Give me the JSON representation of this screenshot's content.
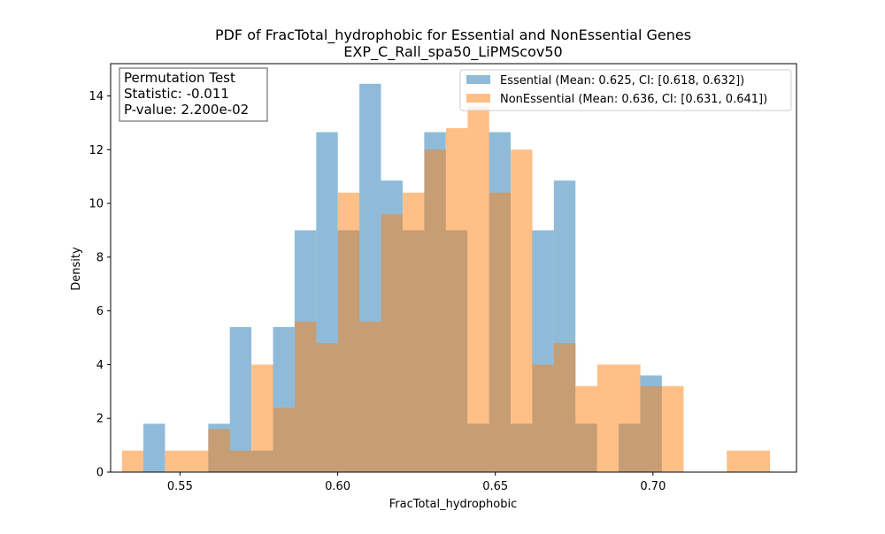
{
  "chart_data": {
    "type": "bar",
    "title": "PDF of FracTotal_hydrophobic for Essential and NonEssential Genes",
    "subtitle": "EXP_C_Rall_spa50_LiPMScov50",
    "xlabel": "FracTotal_hydrophobic",
    "ylabel": "Density",
    "xlim": [
      0.528,
      0.7455
    ],
    "ylim": [
      0,
      15.2
    ],
    "xticks": [
      0.55,
      0.6,
      0.65,
      0.7
    ],
    "xtick_labels": [
      "0.55",
      "0.60",
      "0.65",
      "0.70"
    ],
    "yticks": [
      0,
      2,
      4,
      6,
      8,
      10,
      12,
      14
    ],
    "ytick_labels": [
      "0",
      "2",
      "4",
      "6",
      "8",
      "10",
      "12",
      "14"
    ],
    "grid": false,
    "legend_position": "top-right",
    "series": [
      {
        "name": "Essential (Mean: 0.625, CI: [0.618, 0.632])",
        "color": "#1f77b4",
        "opacity": 0.5,
        "bin_start": 0.5384,
        "bin_width": 0.00685,
        "values": [
          1.8,
          0,
          0,
          1.8,
          5.4,
          0.8,
          5.4,
          9.0,
          12.65,
          9.0,
          14.45,
          10.85,
          9.0,
          12.65,
          9.0,
          1.8,
          12.65,
          1.8,
          9.0,
          10.85,
          1.8,
          0,
          1.8,
          3.6
        ]
      },
      {
        "name": "NonEssential (Mean: 0.636, CI: [0.631, 0.641])",
        "color": "#ff7f0e",
        "opacity": 0.5,
        "bin_start": 0.5316,
        "bin_width": 0.00685,
        "values": [
          0.8,
          0,
          0.8,
          0.8,
          1.6,
          0.8,
          4.0,
          2.4,
          5.6,
          4.8,
          10.4,
          5.6,
          9.6,
          10.4,
          12.0,
          12.8,
          13.6,
          10.4,
          12.0,
          4.0,
          4.8,
          3.2,
          4.0,
          4.0,
          3.2,
          3.2,
          0,
          0,
          0.8,
          0.8
        ]
      }
    ]
  },
  "stats_box": {
    "line1": "Permutation Test",
    "line2": "Statistic: -0.011",
    "line3": "P-value: 2.200e-02"
  }
}
